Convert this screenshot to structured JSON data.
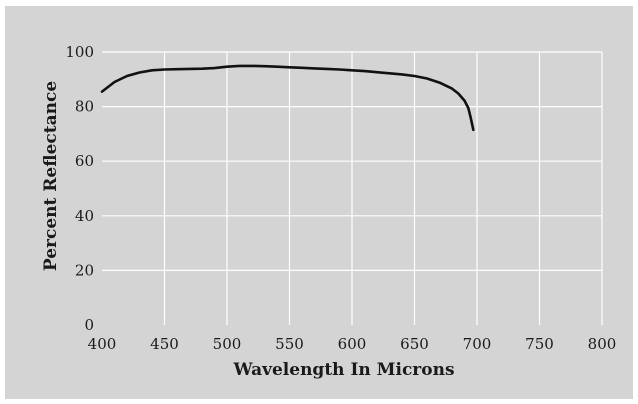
{
  "chart_data": {
    "type": "line",
    "xlabel": "Wavelength In Microns",
    "ylabel": "Percent Reflectance",
    "xlim": [
      400,
      800
    ],
    "ylim": [
      0,
      100
    ],
    "x_ticks": [
      400,
      450,
      500,
      550,
      600,
      650,
      700,
      750,
      800
    ],
    "y_ticks": [
      0,
      20,
      40,
      60,
      80,
      100
    ],
    "grid": true,
    "colors": {
      "panel_background": "#d4d4d4",
      "grid": "#ffffff",
      "line": "#111111"
    },
    "series": [
      {
        "x": [
          400,
          410,
          420,
          430,
          440,
          450,
          460,
          470,
          480,
          490,
          500,
          510,
          520,
          530,
          540,
          550,
          560,
          570,
          580,
          590,
          600,
          610,
          620,
          630,
          640,
          650,
          660,
          670,
          680,
          685,
          690,
          693,
          695,
          697
        ],
        "y": [
          85.5,
          89,
          91.2,
          92.5,
          93.3,
          93.6,
          93.7,
          93.8,
          93.9,
          94.1,
          94.6,
          94.9,
          94.9,
          94.8,
          94.6,
          94.4,
          94.2,
          94.0,
          93.8,
          93.6,
          93.3,
          93.0,
          92.6,
          92.2,
          91.8,
          91.2,
          90.3,
          88.8,
          86.6,
          84.8,
          82.2,
          79.5,
          75.8,
          71.5
        ]
      }
    ]
  }
}
